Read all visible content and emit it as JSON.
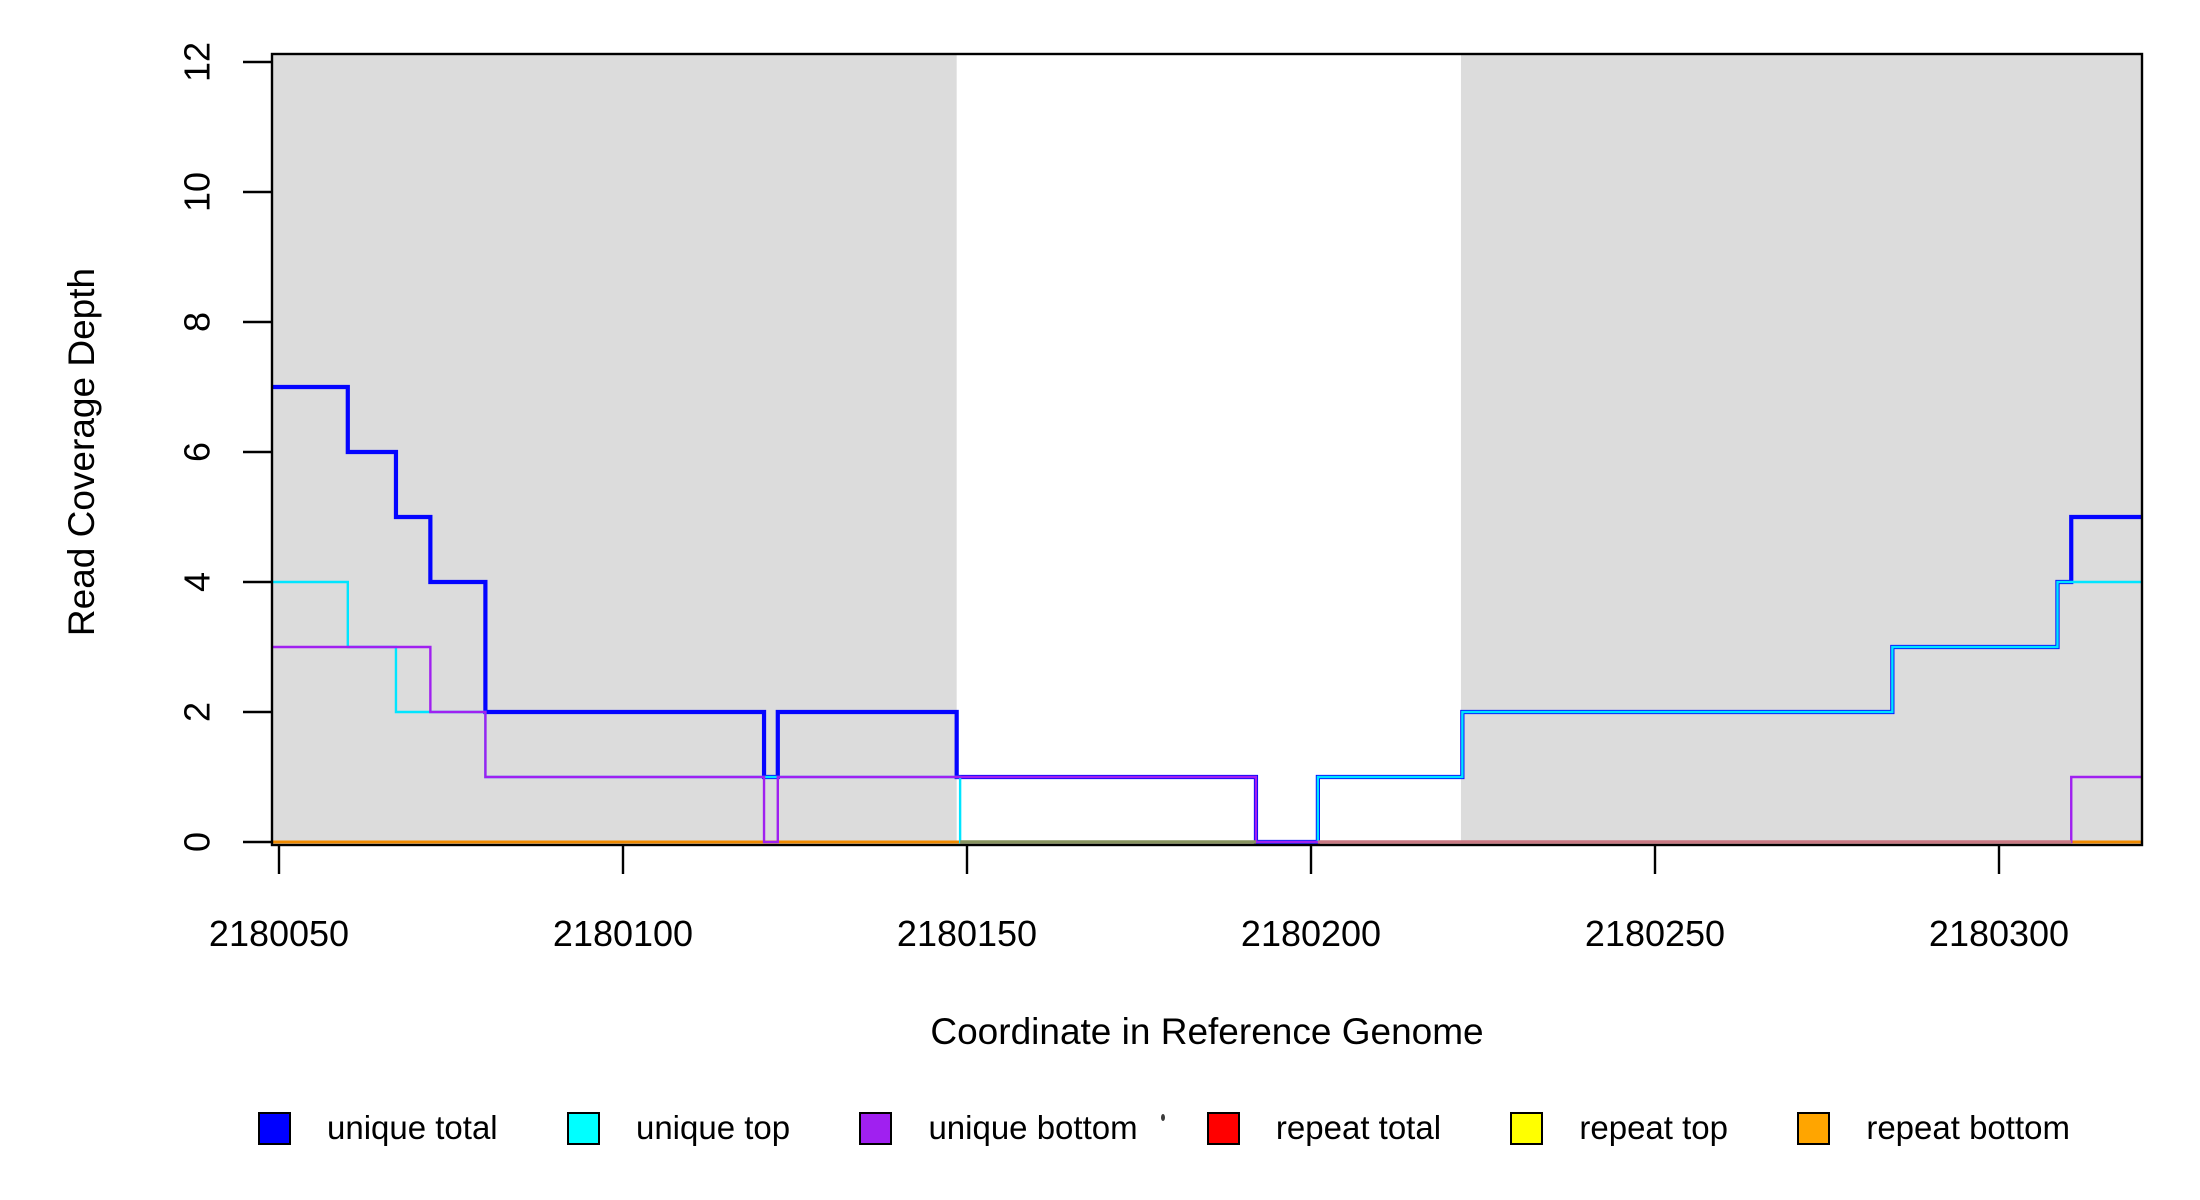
{
  "figure": {
    "background": "#FFFFFF",
    "plot_box_color": "#000000",
    "shaded_region_color": "#DCDCDC"
  },
  "y_axis": {
    "title": "Read Coverage Depth",
    "tick_labels": [
      "0",
      "2",
      "4",
      "6",
      "8",
      "10",
      "12"
    ]
  },
  "x_axis": {
    "title": "Coordinate in Reference Genome",
    "tick_labels": [
      "2180050",
      "2180100",
      "2180150",
      "2180200",
      "2180250",
      "2180300"
    ]
  },
  "chart_data": {
    "type": "line",
    "subtype": "step-after coverage plot",
    "title": "",
    "xlabel": "Coordinate in Reference Genome",
    "ylabel": "Read Coverage Depth",
    "xlim": [
      2180049,
      2180321
    ],
    "ylim": [
      0,
      12
    ],
    "x_ticks": [
      2180050,
      2180100,
      2180150,
      2180200,
      2180250,
      2180300
    ],
    "y_ticks": [
      0,
      2,
      4,
      6,
      8,
      10,
      12
    ],
    "grid": false,
    "shaded_regions": [
      {
        "x1": 2180049,
        "x2": 2180148.5,
        "color": "#DCDCDC"
      },
      {
        "x1": 2180221.8,
        "x2": 2180321,
        "color": "#DCDCDC"
      }
    ],
    "series": [
      {
        "name": "repeat total",
        "color": "#FF0000",
        "width": 3,
        "steps": [
          [
            2180049,
            0
          ]
        ],
        "end": 2180321
      },
      {
        "name": "repeat top",
        "color": "#FFFF00",
        "width": 3,
        "steps": [
          [
            2180049,
            0
          ]
        ],
        "end": 2180321
      },
      {
        "name": "repeat bottom",
        "color": "#F08A00",
        "width": 3,
        "steps": [
          [
            2180049,
            0
          ]
        ],
        "end": 2180321
      },
      {
        "name": "unique total",
        "color": "#0404FF",
        "width": 4.2,
        "steps": [
          [
            2180049,
            7
          ],
          [
            2180060,
            6
          ],
          [
            2180067,
            5
          ],
          [
            2180072,
            4
          ],
          [
            2180080,
            2
          ],
          [
            2180120.5,
            1
          ],
          [
            2180122.5,
            2
          ],
          [
            2180148.5,
            1
          ],
          [
            2180192,
            0
          ],
          [
            2180201,
            1
          ],
          [
            2180222,
            2
          ],
          [
            2180284.5,
            3
          ],
          [
            2180308.5,
            4
          ],
          [
            2180310.5,
            5
          ]
        ],
        "end": 2180321
      },
      {
        "name": "unique top",
        "color": "#00E5FF",
        "width": 2.4,
        "steps": [
          [
            2180049,
            4
          ],
          [
            2180060,
            3
          ],
          [
            2180067,
            2
          ],
          [
            2180080,
            1
          ],
          [
            2180149,
            0
          ],
          [
            2180201,
            1
          ],
          [
            2180222,
            2
          ],
          [
            2180284.5,
            3
          ],
          [
            2180308.5,
            4
          ]
        ],
        "end": 2180321
      },
      {
        "name": "unique bottom",
        "color": "#A020F0",
        "width": 2.4,
        "steps": [
          [
            2180049,
            3
          ],
          [
            2180072,
            2
          ],
          [
            2180080,
            1
          ],
          [
            2180120.5,
            0
          ],
          [
            2180122.5,
            1
          ],
          [
            2180192,
            0
          ],
          [
            2180310.5,
            1
          ]
        ],
        "end": 2180321
      }
    ],
    "baseline_overlap_segments": [
      {
        "x1": 2180149,
        "x2": 2180192,
        "color": "#87935F",
        "note": "overlapping zero-depth lines render olive"
      },
      {
        "x1": 2180201,
        "x2": 2180310.5,
        "color": "#C97882",
        "note": "overlapping zero-depth lines render rose"
      }
    ],
    "legend": {
      "position": "bottom",
      "entries": [
        {
          "label": "unique total",
          "color": "#0000FF"
        },
        {
          "label": "unique top",
          "color": "#00FFFF"
        },
        {
          "label": "unique bottom",
          "color": "#A020F0"
        },
        {
          "label": "repeat total",
          "color": "#FF0000"
        },
        {
          "label": "repeat top",
          "color": "#FFFF00"
        },
        {
          "label": "repeat bottom",
          "color": "#FFA500"
        }
      ]
    }
  }
}
